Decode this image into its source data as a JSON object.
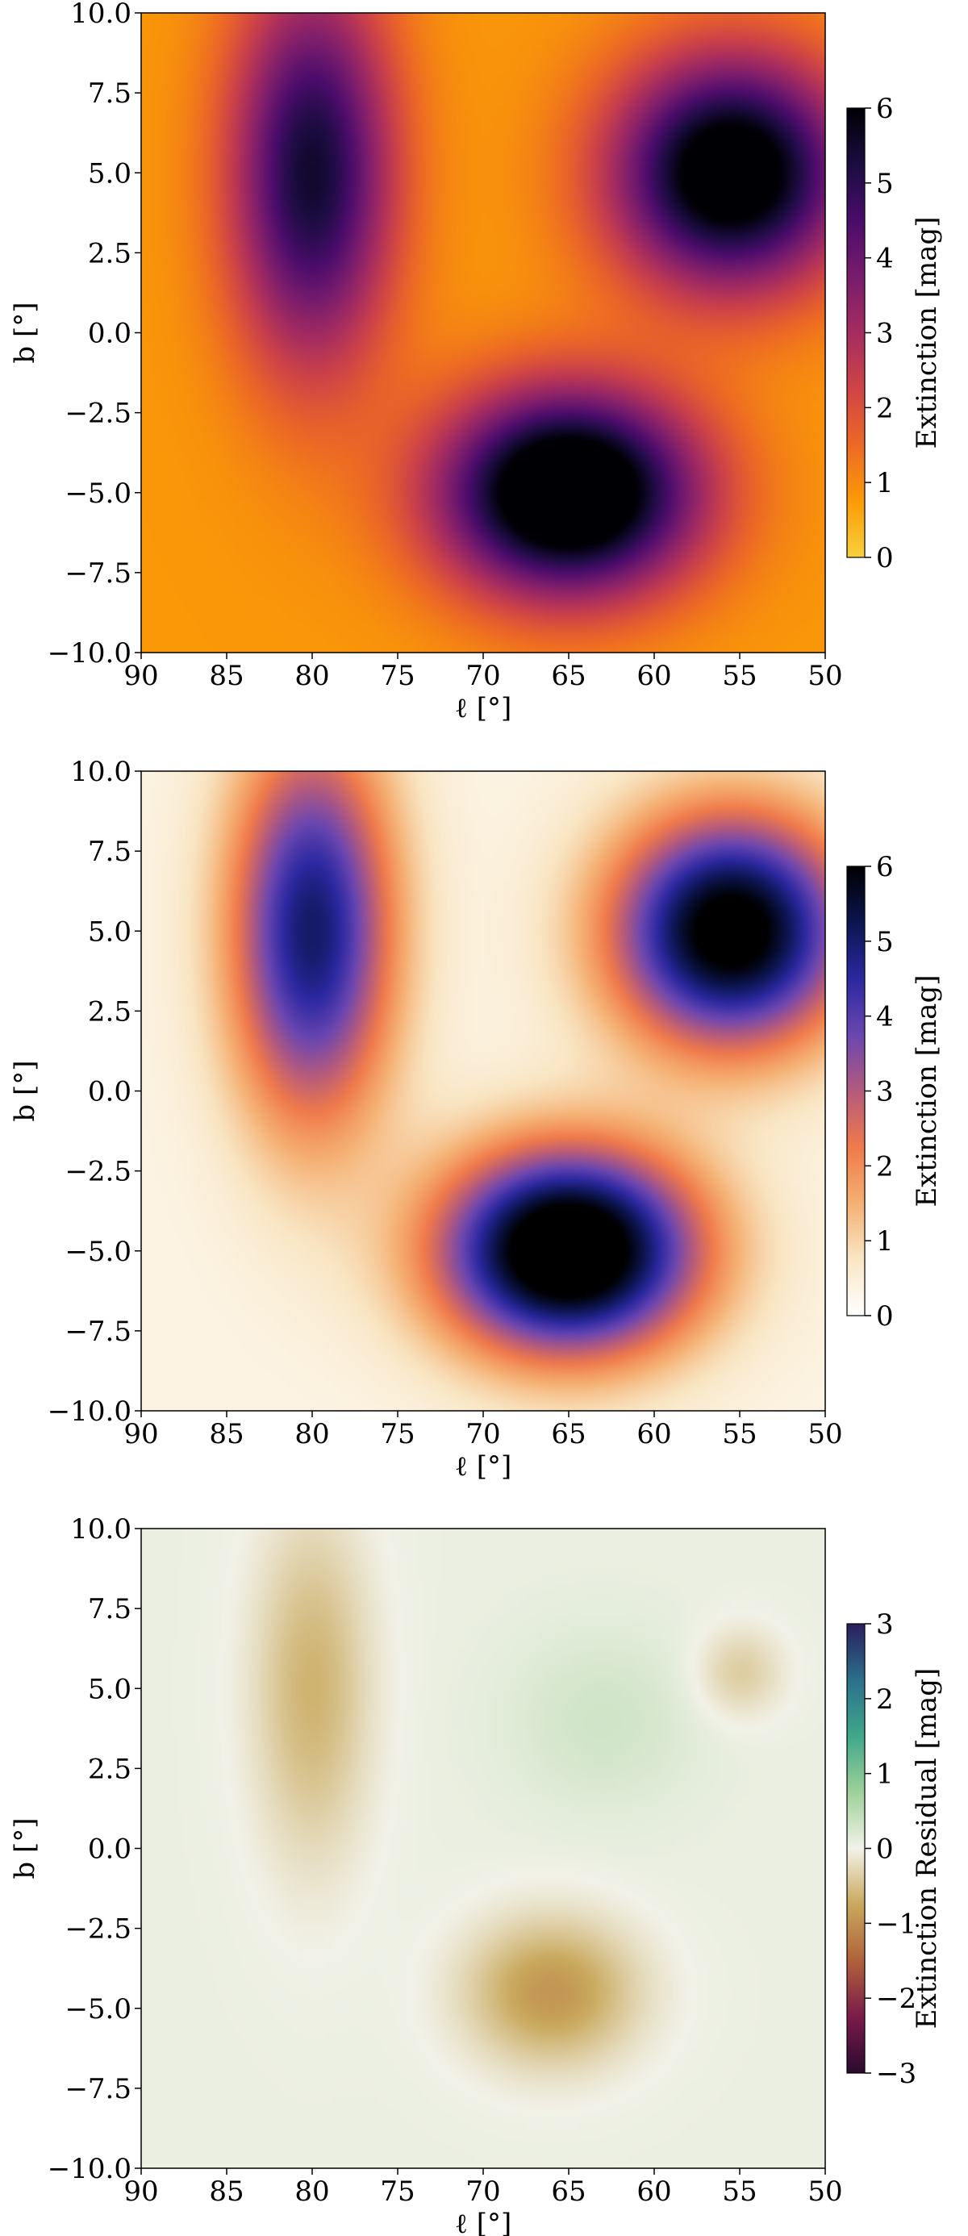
{
  "chart_data": [
    {
      "type": "heatmap",
      "title": "",
      "xlabel": "ℓ [°]",
      "ylabel": "b [°]",
      "xlim": [
        90,
        50
      ],
      "ylim": [
        -10.0,
        10.0
      ],
      "xticks": [
        "90",
        "85",
        "80",
        "75",
        "70",
        "65",
        "60",
        "55",
        "50"
      ],
      "yticks": [
        "10.0",
        "7.5",
        "5.0",
        "2.5",
        "0.0",
        "−2.5",
        "−5.0",
        "−7.5",
        "−10.0"
      ],
      "colorbar": {
        "label": "Extinction [mag]",
        "range": [
          0,
          6
        ],
        "ticks": [
          "0",
          "1",
          "2",
          "3",
          "4",
          "5",
          "6"
        ],
        "colormap": "inferno_r",
        "stops": [
          "#f7d13d",
          "#fb9b06",
          "#ed6925",
          "#cf4446",
          "#a52c60",
          "#781c6d",
          "#4a0c6b",
          "#1b0c41",
          "#000004"
        ]
      },
      "background_level": 0.8,
      "features": [
        {
          "l": 80,
          "b": 5,
          "sigma_l": 3.3,
          "sigma_b": 4.2,
          "peak": 4.7
        },
        {
          "l": 55.5,
          "b": 5,
          "sigma_l": 4.8,
          "sigma_b": 2.5,
          "peak": 6.2
        },
        {
          "l": 65,
          "b": -5,
          "sigma_l": 5.2,
          "sigma_b": 2.2,
          "peak": 7.0
        }
      ]
    },
    {
      "type": "heatmap",
      "title": "",
      "xlabel": "ℓ [°]",
      "ylabel": "b [°]",
      "xlim": [
        90,
        50
      ],
      "ylim": [
        -10.0,
        10.0
      ],
      "xticks": [
        "90",
        "85",
        "80",
        "75",
        "70",
        "65",
        "60",
        "55",
        "50"
      ],
      "yticks": [
        "10.0",
        "7.5",
        "5.0",
        "2.5",
        "0.0",
        "−2.5",
        "−5.0",
        "−7.5",
        "−10.0"
      ],
      "colorbar": {
        "label": "Extinction [mag]",
        "range": [
          0,
          6
        ],
        "ticks": [
          "0",
          "1",
          "2",
          "3",
          "4",
          "5",
          "6"
        ],
        "colormap": "CMRmap_r",
        "stops": [
          "#ffffff",
          "#f9e6c4",
          "#f5b073",
          "#f07a4a",
          "#b45a7d",
          "#6a46b1",
          "#2b28a0",
          "#0c1550",
          "#000000"
        ]
      },
      "background_level": 0.35,
      "features": [
        {
          "l": 80,
          "b": 5,
          "sigma_l": 3.3,
          "sigma_b": 4.2,
          "peak": 4.7
        },
        {
          "l": 55.5,
          "b": 5,
          "sigma_l": 4.8,
          "sigma_b": 2.5,
          "peak": 6.2
        },
        {
          "l": 65,
          "b": -5,
          "sigma_l": 5.2,
          "sigma_b": 2.2,
          "peak": 7.0
        }
      ]
    },
    {
      "type": "heatmap",
      "title": "",
      "xlabel": "ℓ [°]",
      "ylabel": "b [°]",
      "xlim": [
        90,
        50
      ],
      "ylim": [
        -10.0,
        10.0
      ],
      "xticks": [
        "90",
        "85",
        "80",
        "75",
        "70",
        "65",
        "60",
        "55",
        "50"
      ],
      "yticks": [
        "10.0",
        "7.5",
        "5.0",
        "2.5",
        "0.0",
        "−2.5",
        "−5.0",
        "−7.5",
        "−10.0"
      ],
      "colorbar": {
        "label": "Extinction Residual [mag]",
        "range": [
          -3,
          3
        ],
        "ticks": [
          "−3",
          "−2",
          "−1",
          "0",
          "1",
          "2",
          "3"
        ],
        "colormap": "cubehelix diverging",
        "stops": [
          "#2a0a2e",
          "#7a1a4a",
          "#b0613a",
          "#c9a85c",
          "#f2f2e8",
          "#9ed19a",
          "#3fa78b",
          "#2b6f8c",
          "#2a1e5c"
        ]
      },
      "background_level": 0.06,
      "features": [
        {
          "l": 80,
          "b": 5,
          "sigma_l": 2.4,
          "sigma_b": 3.8,
          "peak": -0.7
        },
        {
          "l": 66,
          "b": -4.5,
          "sigma_l": 3.5,
          "sigma_b": 1.6,
          "peak": -1.0
        },
        {
          "l": 55,
          "b": 5.5,
          "sigma_l": 1.8,
          "sigma_b": 1.0,
          "peak": -0.45
        },
        {
          "l": 63,
          "b": 4.0,
          "sigma_l": 4.0,
          "sigma_b": 2.0,
          "peak": 0.25
        }
      ]
    }
  ]
}
